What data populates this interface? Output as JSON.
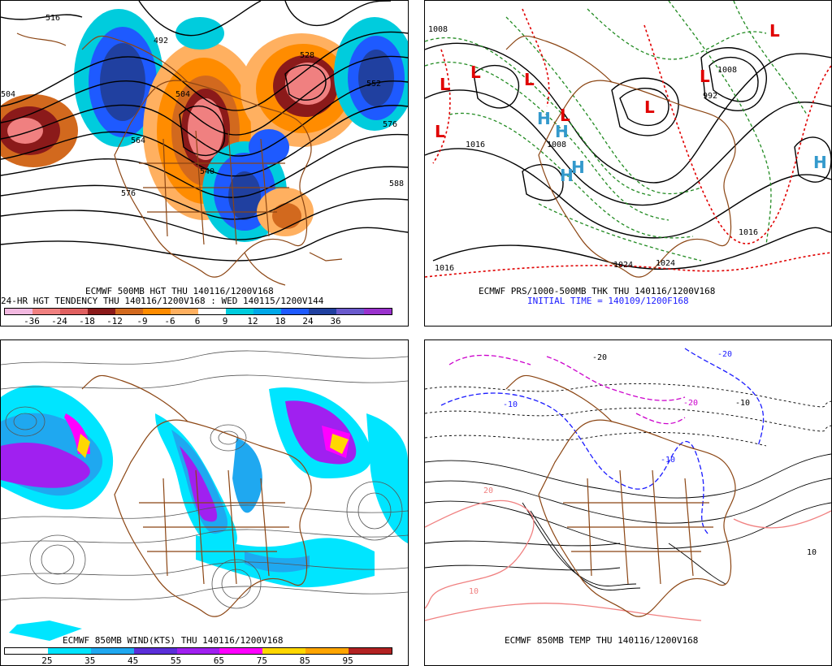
{
  "panels": {
    "p1": {
      "title": "ECMWF 500MB HGT THU 140116/1200V168",
      "subtitle": "24-HR HGT TENDENCY THU 140116/1200V168 : WED 140115/1200V144",
      "colorbar": {
        "labels": [
          "-36",
          "-24",
          "-18",
          "-12",
          "-9",
          "-6",
          "6",
          "9",
          "12",
          "18",
          "24",
          "36"
        ],
        "colors": [
          "#f2b8e0",
          "#f08080",
          "#e06060",
          "#8b1a1a",
          "#d2691e",
          "#ff8c00",
          "#ffb060",
          "#ffffff",
          "#00ccdd",
          "#00a8e8",
          "#1e5aff",
          "#2040a0",
          "#6a5acd",
          "#9a32cd"
        ]
      },
      "contour_labels": [
        "516",
        "504",
        "588",
        "528",
        "552",
        "576",
        "588",
        "492",
        "576",
        "540",
        "504",
        "564"
      ]
    },
    "p2": {
      "title": "ECMWF PRS/1000-500MB THK THU 140116/1200V168",
      "subtitle": "INITIAL TIME = 140109/1200F168",
      "contour_labels": [
        "1008",
        "1016",
        "1016",
        "1024",
        "1024",
        "1008",
        "1016",
        "992",
        "1008"
      ],
      "lows": [
        "L",
        "L",
        "L",
        "L",
        "L",
        "L",
        "L",
        "L"
      ],
      "highs": [
        "H",
        "H",
        "H",
        "H",
        "H"
      ]
    },
    "p3": {
      "title": "ECMWF 850MB WIND(KTS) THU 140116/1200V168",
      "colorbar": {
        "labels": [
          "25",
          "35",
          "45",
          "55",
          "65",
          "75",
          "85",
          "95"
        ],
        "colors": [
          "#ffffff",
          "#00e5ff",
          "#1fa8f0",
          "#5b2fd9",
          "#a020f0",
          "#ff00ff",
          "#ffd700",
          "#ffa500",
          "#b22222"
        ]
      }
    },
    "p4": {
      "title": "ECMWF 850MB TEMP THU 140116/1200V168",
      "contour_labels": [
        "-20",
        "-10",
        "-10",
        "-20",
        "-10",
        "20",
        "10",
        "10",
        "-20"
      ]
    }
  },
  "colors": {
    "coast": "#8b4513",
    "contour": "#000000",
    "thickness_warm": "#e00000",
    "thickness_cold": "#228b22",
    "temp_cold": "#1a1aff",
    "temp_warm": "#f08080",
    "temp_verycold": "#cc00cc",
    "high": "#3399cc"
  }
}
